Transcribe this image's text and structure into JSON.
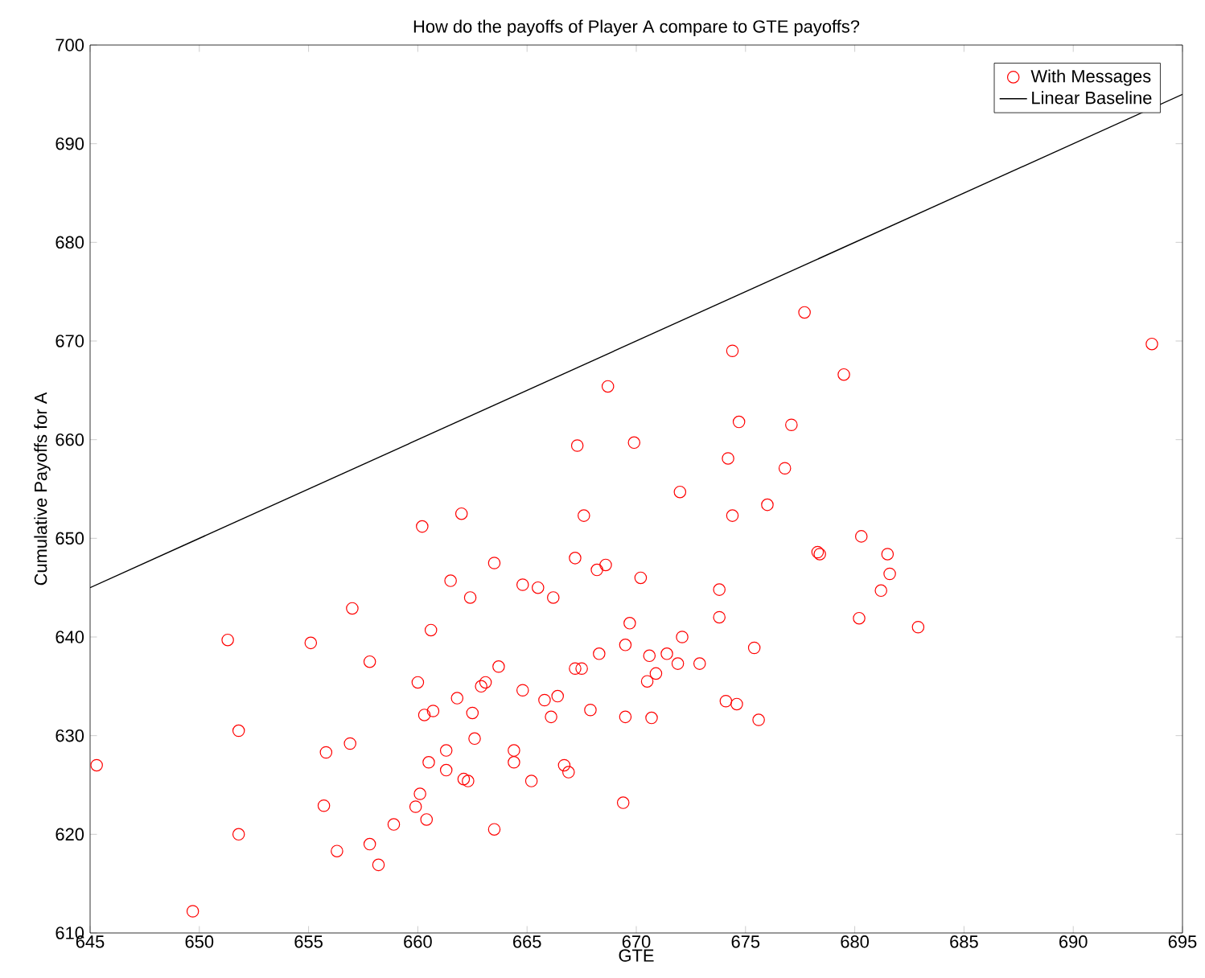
{
  "chart_data": {
    "type": "scatter",
    "title": "How do the payoffs of Player A compare to GTE payoffs?",
    "xlabel": "GTE",
    "ylabel": "Cumulative Payoffs for A",
    "xlim": [
      645,
      695
    ],
    "ylim": [
      610,
      700
    ],
    "xticks": [
      645,
      650,
      655,
      660,
      665,
      670,
      675,
      680,
      685,
      690,
      695
    ],
    "yticks": [
      610,
      620,
      630,
      640,
      650,
      660,
      670,
      680,
      690,
      700
    ],
    "legend": "top right",
    "grid": false,
    "series": [
      {
        "name": "With Messages",
        "marker": "circle",
        "color": "#ff0000",
        "x": [
          645.3,
          649.7,
          651.3,
          651.8,
          651.8,
          655.1,
          655.8,
          655.7,
          656.3,
          656.9,
          657,
          657.8,
          657.8,
          658.2,
          658.9,
          659.9,
          660.1,
          660,
          660.2,
          660.3,
          660.6,
          660.5,
          660.4,
          660.7,
          661.3,
          661.3,
          661.5,
          661.8,
          662,
          662.1,
          662.3,
          662.4,
          662.5,
          662.6,
          662.9,
          663.1,
          663.5,
          663.5,
          663.7,
          664.4,
          664.4,
          664.8,
          664.8,
          665.2,
          665.5,
          665.8,
          666.1,
          666.2,
          666.4,
          666.7,
          666.9,
          667.2,
          667.2,
          667.3,
          667.5,
          667.6,
          667.9,
          668.2,
          668.3,
          668.6,
          668.7,
          669.4,
          669.5,
          669.5,
          669.7,
          669.9,
          670.2,
          670.5,
          670.6,
          670.7,
          670.9,
          671.4,
          671.9,
          672,
          672.1,
          672.9,
          673.8,
          673.8,
          674.1,
          674.2,
          674.4,
          674.4,
          674.6,
          674.7,
          675.4,
          675.6,
          676,
          676.8,
          677.1,
          677.7,
          678.3,
          678.4,
          679.5,
          680.2,
          680.3,
          681.2,
          681.5,
          681.6,
          682.9,
          693.6
        ],
        "values": [
          627,
          612.2,
          639.7,
          630.5,
          620,
          639.4,
          628.3,
          622.9,
          618.3,
          629.2,
          642.9,
          637.5,
          619,
          616.9,
          621,
          622.8,
          624.1,
          635.4,
          651.2,
          632.1,
          640.7,
          627.3,
          621.5,
          632.5,
          628.5,
          626.5,
          645.7,
          633.8,
          652.5,
          625.6,
          625.4,
          644,
          632.3,
          629.7,
          635,
          635.4,
          647.5,
          620.5,
          637,
          628.5,
          627.3,
          634.6,
          645.3,
          625.4,
          645,
          633.6,
          631.9,
          644,
          634,
          627,
          626.3,
          648,
          636.8,
          659.4,
          636.8,
          652.3,
          632.6,
          646.8,
          638.3,
          647.3,
          665.4,
          623.2,
          639.2,
          631.9,
          641.4,
          659.7,
          646,
          635.5,
          638.1,
          631.8,
          636.3,
          638.3,
          637.3,
          654.7,
          640,
          637.3,
          644.8,
          642,
          633.5,
          658.1,
          652.3,
          669,
          633.2,
          661.8,
          638.9,
          631.6,
          653.4,
          657.1,
          661.5,
          672.9,
          648.6,
          648.4,
          666.6,
          641.9,
          650.2,
          644.7,
          648.4,
          646.4,
          641,
          669.7
        ]
      },
      {
        "name": "Linear Baseline",
        "type": "line",
        "marker": "none",
        "line_style": "solid",
        "color": "#000000",
        "x": [
          645,
          695
        ],
        "values": [
          645,
          695
        ]
      }
    ]
  }
}
